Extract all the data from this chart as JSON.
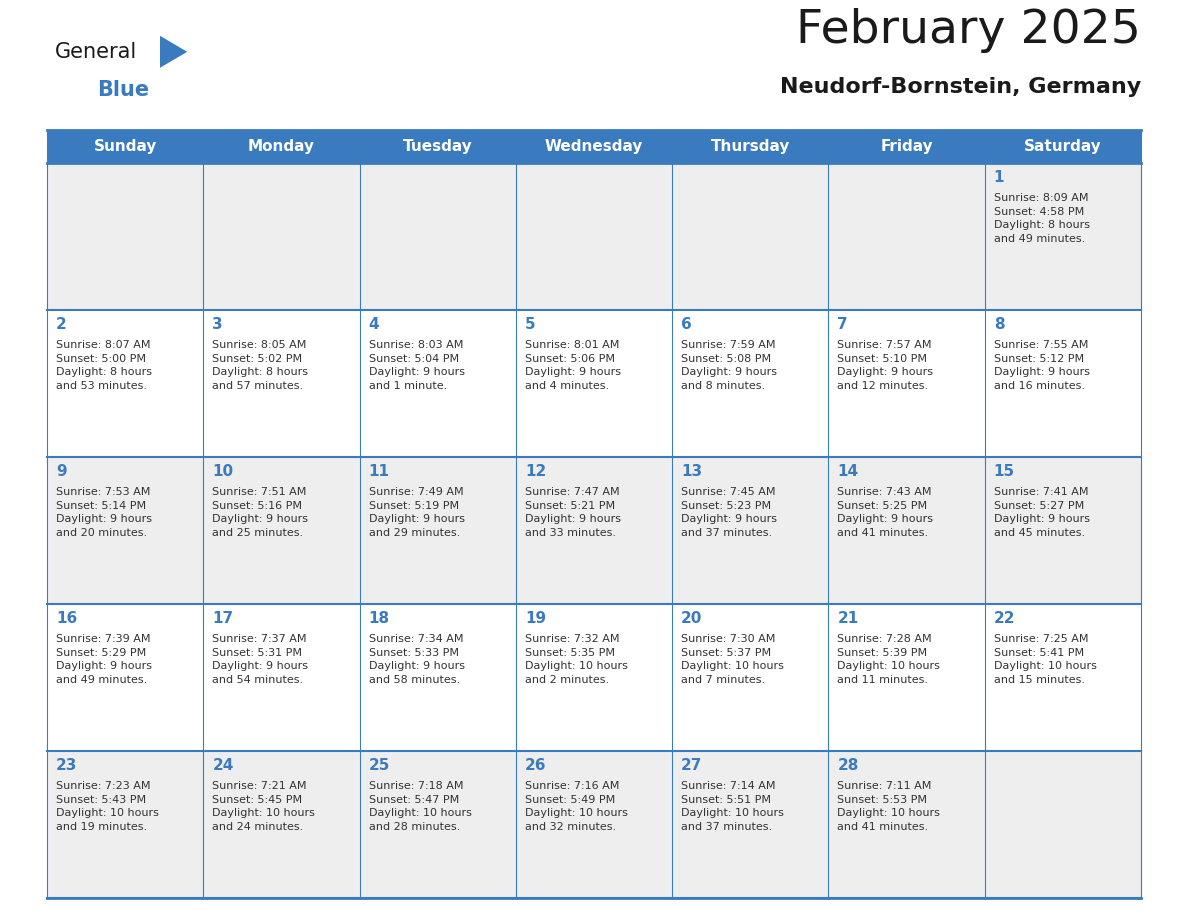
{
  "title": "February 2025",
  "subtitle": "Neudorf-Bornstein, Germany",
  "header_bg_color": "#3a7abf",
  "header_text_color": "#ffffff",
  "cell_bg_light": "#eeeeee",
  "cell_bg_white": "#ffffff",
  "title_color": "#1a1a1a",
  "subtitle_color": "#1a1a1a",
  "day_number_color": "#3a7abf",
  "info_text_color": "#333333",
  "grid_line_color": "#3a7abf",
  "logo_text_color": "#1a1a1a",
  "logo_blue_color": "#3a7abf",
  "weekdays": [
    "Sunday",
    "Monday",
    "Tuesday",
    "Wednesday",
    "Thursday",
    "Friday",
    "Saturday"
  ],
  "weeks": [
    [
      {
        "day": 0,
        "info": ""
      },
      {
        "day": 0,
        "info": ""
      },
      {
        "day": 0,
        "info": ""
      },
      {
        "day": 0,
        "info": ""
      },
      {
        "day": 0,
        "info": ""
      },
      {
        "day": 0,
        "info": ""
      },
      {
        "day": 1,
        "info": "Sunrise: 8:09 AM\nSunset: 4:58 PM\nDaylight: 8 hours\nand 49 minutes."
      }
    ],
    [
      {
        "day": 2,
        "info": "Sunrise: 8:07 AM\nSunset: 5:00 PM\nDaylight: 8 hours\nand 53 minutes."
      },
      {
        "day": 3,
        "info": "Sunrise: 8:05 AM\nSunset: 5:02 PM\nDaylight: 8 hours\nand 57 minutes."
      },
      {
        "day": 4,
        "info": "Sunrise: 8:03 AM\nSunset: 5:04 PM\nDaylight: 9 hours\nand 1 minute."
      },
      {
        "day": 5,
        "info": "Sunrise: 8:01 AM\nSunset: 5:06 PM\nDaylight: 9 hours\nand 4 minutes."
      },
      {
        "day": 6,
        "info": "Sunrise: 7:59 AM\nSunset: 5:08 PM\nDaylight: 9 hours\nand 8 minutes."
      },
      {
        "day": 7,
        "info": "Sunrise: 7:57 AM\nSunset: 5:10 PM\nDaylight: 9 hours\nand 12 minutes."
      },
      {
        "day": 8,
        "info": "Sunrise: 7:55 AM\nSunset: 5:12 PM\nDaylight: 9 hours\nand 16 minutes."
      }
    ],
    [
      {
        "day": 9,
        "info": "Sunrise: 7:53 AM\nSunset: 5:14 PM\nDaylight: 9 hours\nand 20 minutes."
      },
      {
        "day": 10,
        "info": "Sunrise: 7:51 AM\nSunset: 5:16 PM\nDaylight: 9 hours\nand 25 minutes."
      },
      {
        "day": 11,
        "info": "Sunrise: 7:49 AM\nSunset: 5:19 PM\nDaylight: 9 hours\nand 29 minutes."
      },
      {
        "day": 12,
        "info": "Sunrise: 7:47 AM\nSunset: 5:21 PM\nDaylight: 9 hours\nand 33 minutes."
      },
      {
        "day": 13,
        "info": "Sunrise: 7:45 AM\nSunset: 5:23 PM\nDaylight: 9 hours\nand 37 minutes."
      },
      {
        "day": 14,
        "info": "Sunrise: 7:43 AM\nSunset: 5:25 PM\nDaylight: 9 hours\nand 41 minutes."
      },
      {
        "day": 15,
        "info": "Sunrise: 7:41 AM\nSunset: 5:27 PM\nDaylight: 9 hours\nand 45 minutes."
      }
    ],
    [
      {
        "day": 16,
        "info": "Sunrise: 7:39 AM\nSunset: 5:29 PM\nDaylight: 9 hours\nand 49 minutes."
      },
      {
        "day": 17,
        "info": "Sunrise: 7:37 AM\nSunset: 5:31 PM\nDaylight: 9 hours\nand 54 minutes."
      },
      {
        "day": 18,
        "info": "Sunrise: 7:34 AM\nSunset: 5:33 PM\nDaylight: 9 hours\nand 58 minutes."
      },
      {
        "day": 19,
        "info": "Sunrise: 7:32 AM\nSunset: 5:35 PM\nDaylight: 10 hours\nand 2 minutes."
      },
      {
        "day": 20,
        "info": "Sunrise: 7:30 AM\nSunset: 5:37 PM\nDaylight: 10 hours\nand 7 minutes."
      },
      {
        "day": 21,
        "info": "Sunrise: 7:28 AM\nSunset: 5:39 PM\nDaylight: 10 hours\nand 11 minutes."
      },
      {
        "day": 22,
        "info": "Sunrise: 7:25 AM\nSunset: 5:41 PM\nDaylight: 10 hours\nand 15 minutes."
      }
    ],
    [
      {
        "day": 23,
        "info": "Sunrise: 7:23 AM\nSunset: 5:43 PM\nDaylight: 10 hours\nand 19 minutes."
      },
      {
        "day": 24,
        "info": "Sunrise: 7:21 AM\nSunset: 5:45 PM\nDaylight: 10 hours\nand 24 minutes."
      },
      {
        "day": 25,
        "info": "Sunrise: 7:18 AM\nSunset: 5:47 PM\nDaylight: 10 hours\nand 28 minutes."
      },
      {
        "day": 26,
        "info": "Sunrise: 7:16 AM\nSunset: 5:49 PM\nDaylight: 10 hours\nand 32 minutes."
      },
      {
        "day": 27,
        "info": "Sunrise: 7:14 AM\nSunset: 5:51 PM\nDaylight: 10 hours\nand 37 minutes."
      },
      {
        "day": 28,
        "info": "Sunrise: 7:11 AM\nSunset: 5:53 PM\nDaylight: 10 hours\nand 41 minutes."
      },
      {
        "day": 0,
        "info": ""
      }
    ]
  ]
}
